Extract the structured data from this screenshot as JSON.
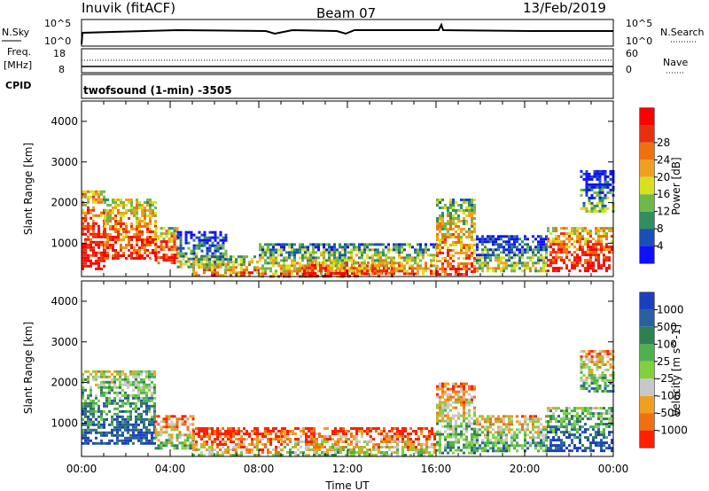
{
  "header": {
    "station": "Inuvik (fitACF)",
    "beam": "Beam 07",
    "date": "13/Feb/2019"
  },
  "strip_panels": {
    "nsky": {
      "label": "N.Sky",
      "right_label": "N.Search",
      "left_ticks": [
        "10^5",
        "10^0"
      ],
      "right_ticks": [
        "10^5",
        "10^0"
      ]
    },
    "freq": {
      "label_lines": [
        "Freq.",
        "[MHz]"
      ],
      "right_label": "Nave",
      "left_ticks": [
        "18",
        "8"
      ],
      "right_ticks": [
        "60",
        "0"
      ]
    },
    "cpid": {
      "label": "CPID",
      "text": "twofsound (1-min) -3505"
    }
  },
  "chart_data": [
    {
      "type": "heatmap",
      "name": "power",
      "ylabel": "Slant Range [km]",
      "yticks": [
        "1000",
        "2000",
        "3000",
        "4000"
      ],
      "ylim": [
        180,
        4500
      ],
      "xlim_hours": [
        0,
        24
      ],
      "colorbar": {
        "label": "Power [dB]",
        "ticks": [
          "4",
          "8",
          "12",
          "16",
          "20",
          "24",
          "28"
        ],
        "colors": [
          "#1010ff",
          "#1a4fb5",
          "#2f8f5f",
          "#6fb84a",
          "#d8e020",
          "#f0a020",
          "#f07010",
          "#e83010",
          "#ff0000"
        ]
      },
      "echo_regions": [
        {
          "x0": 0.0,
          "x1": 1.0,
          "r0": 400,
          "r1": 2300,
          "lvl": 0.8
        },
        {
          "x0": 1.0,
          "x1": 3.3,
          "r0": 600,
          "r1": 2100,
          "lvl": 0.7
        },
        {
          "x0": 3.3,
          "x1": 4.3,
          "r0": 500,
          "r1": 1400,
          "lvl": 0.75
        },
        {
          "x0": 4.3,
          "x1": 6.5,
          "r0": 400,
          "r1": 1300,
          "lvl": 0.25
        },
        {
          "x0": 5.0,
          "x1": 8.0,
          "r0": 200,
          "r1": 700,
          "lvl": 0.55
        },
        {
          "x0": 8.0,
          "x1": 12.0,
          "r0": 200,
          "r1": 1000,
          "lvl": 0.45
        },
        {
          "x0": 10.0,
          "x1": 14.0,
          "r0": 200,
          "r1": 550,
          "lvl": 0.85
        },
        {
          "x0": 12.0,
          "x1": 16.0,
          "r0": 250,
          "r1": 1000,
          "lvl": 0.5
        },
        {
          "x0": 16.0,
          "x1": 17.8,
          "r0": 250,
          "r1": 2100,
          "lvl": 0.6
        },
        {
          "x0": 17.8,
          "x1": 21.0,
          "r0": 300,
          "r1": 1200,
          "lvl": 0.3
        },
        {
          "x0": 21.0,
          "x1": 24.0,
          "r0": 300,
          "r1": 1400,
          "lvl": 0.8
        },
        {
          "x0": 22.5,
          "x1": 24.0,
          "r0": 1800,
          "r1": 2800,
          "lvl": 0.2
        }
      ]
    },
    {
      "type": "heatmap",
      "name": "velocity",
      "ylabel": "Slant Range [km]",
      "yticks": [
        "1000",
        "2000",
        "3000",
        "4000"
      ],
      "ylim": [
        180,
        4500
      ],
      "xlim_hours": [
        0,
        24
      ],
      "xticks": [
        "00:00",
        "04:00",
        "08:00",
        "12:00",
        "16:00",
        "20:00",
        "00:00"
      ],
      "xlabel": "Time UT",
      "colorbar": {
        "label": "Velocity [m s^-1]",
        "ticks": [
          "1000",
          "500",
          "100",
          "25",
          "-25",
          "-100",
          "-500",
          "-1000"
        ],
        "colors": [
          "#1a3fbf",
          "#2a60a0",
          "#2f8050",
          "#4fb050",
          "#80d040",
          "#c8c8c8",
          "#f0a020",
          "#f07010",
          "#ff2000"
        ]
      },
      "echo_regions": [
        {
          "x0": 0.0,
          "x1": 3.3,
          "r0": 500,
          "r1": 2300,
          "lvl": 0.7
        },
        {
          "x0": 3.3,
          "x1": 5.0,
          "r0": 400,
          "r1": 1200,
          "lvl": 0.35
        },
        {
          "x0": 5.0,
          "x1": 9.0,
          "r0": 200,
          "r1": 900,
          "lvl": 0.2
        },
        {
          "x0": 9.0,
          "x1": 13.0,
          "r0": 200,
          "r1": 900,
          "lvl": 0.3
        },
        {
          "x0": 13.0,
          "x1": 16.0,
          "r0": 200,
          "r1": 900,
          "lvl": 0.25
        },
        {
          "x0": 16.0,
          "x1": 17.8,
          "r0": 250,
          "r1": 2000,
          "lvl": 0.45
        },
        {
          "x0": 17.8,
          "x1": 21.0,
          "r0": 300,
          "r1": 1200,
          "lvl": 0.5
        },
        {
          "x0": 21.0,
          "x1": 24.0,
          "r0": 300,
          "r1": 1400,
          "lvl": 0.75
        },
        {
          "x0": 22.5,
          "x1": 24.0,
          "r0": 1800,
          "r1": 2800,
          "lvl": 0.45
        }
      ]
    }
  ]
}
